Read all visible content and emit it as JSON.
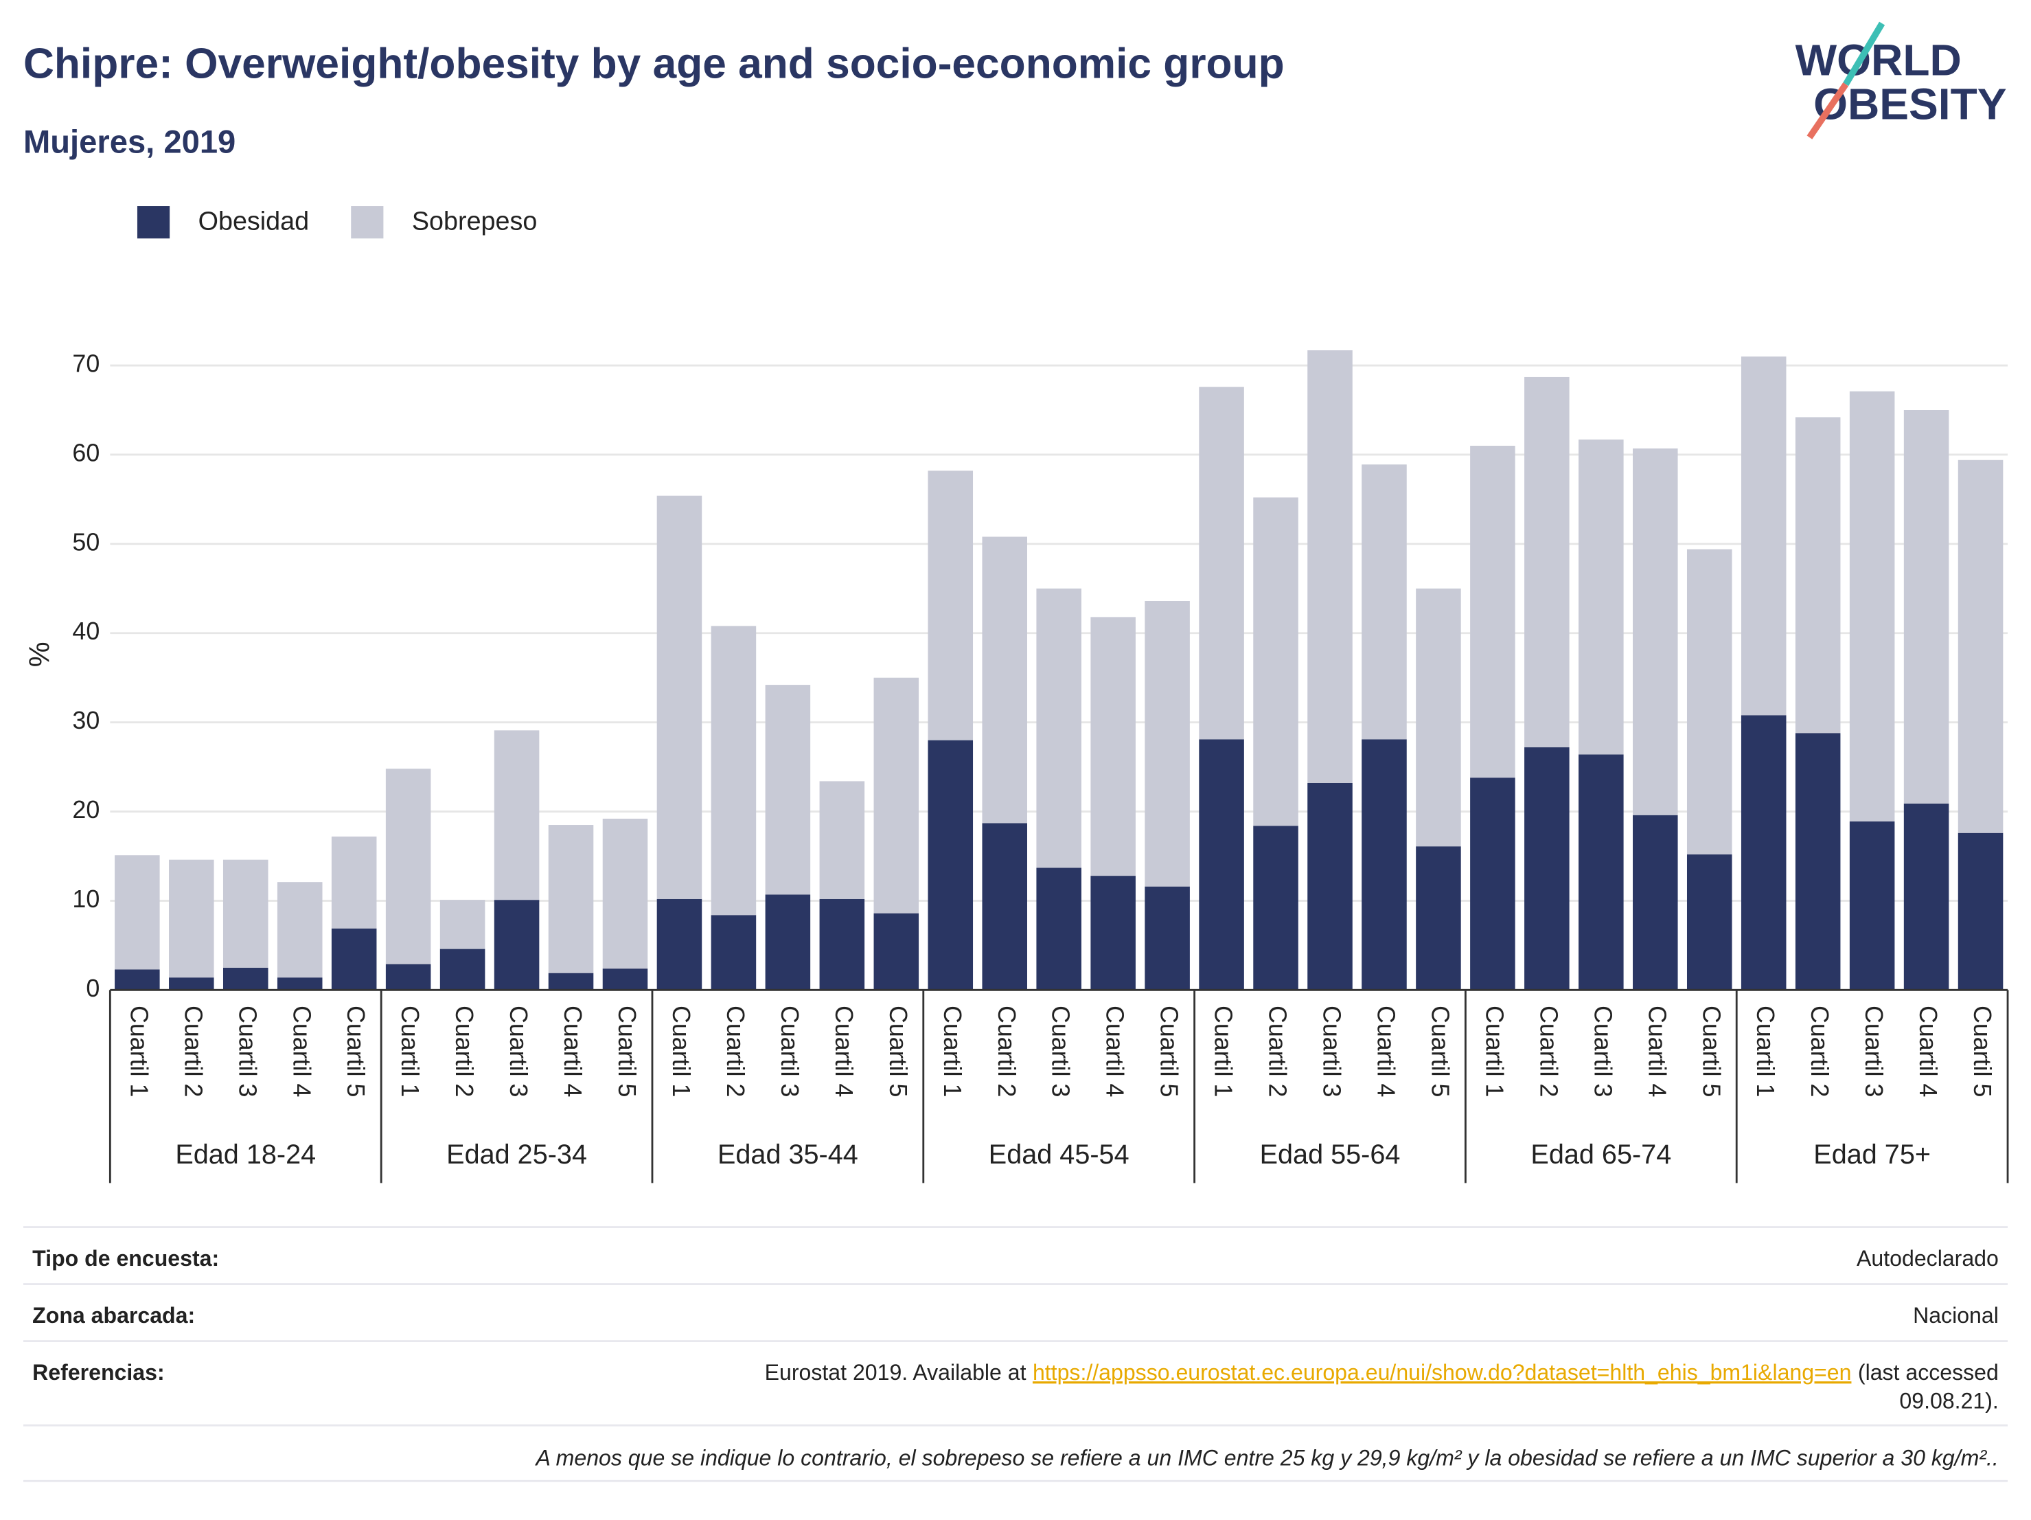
{
  "chart_data": {
    "type": "stacked_bar",
    "title": "Chipre: Overweight/obesity by age and socio-economic group",
    "subtitle": "Mujeres, 2019",
    "y_label": "%",
    "logo": [
      "WORLD",
      "OBESITY"
    ],
    "groups": [
      "Edad 18-24",
      "Edad 25-34",
      "Edad 35-44",
      "Edad 45-54",
      "Edad 55-64",
      "Edad 65-74",
      "Edad 75+"
    ],
    "categories": [
      "Cuartil 1",
      "Cuartil 2",
      "Cuartil 3",
      "Cuartil 4",
      "Cuartil 5",
      "Cuartil 1",
      "Cuartil 2",
      "Cuartil 3",
      "Cuartil 4",
      "Cuartil 5",
      "Cuartil 1",
      "Cuartil 2",
      "Cuartil 3",
      "Cuartil 4",
      "Cuartil 5",
      "Cuartil 1",
      "Cuartil 2",
      "Cuartil 3",
      "Cuartil 4",
      "Cuartil 5",
      "Cuartil 1",
      "Cuartil 2",
      "Cuartil 3",
      "Cuartil 4",
      "Cuartil 5",
      "Cuartil 1",
      "Cuartil 2",
      "Cuartil 3",
      "Cuartil 4",
      "Cuartil 5",
      "Cuartil 1",
      "Cuartil 2",
      "Cuartil 3",
      "Cuartil 4",
      "Cuartil 5"
    ],
    "series": [
      {
        "name": "Obesidad",
        "color": "#2a3663",
        "values": [
          2.3,
          1.4,
          2.5,
          1.4,
          6.9,
          2.9,
          4.6,
          10.1,
          1.9,
          2.4,
          10.2,
          8.4,
          10.7,
          10.2,
          8.6,
          28.0,
          18.7,
          13.7,
          12.8,
          11.6,
          28.1,
          18.4,
          23.2,
          28.1,
          16.1,
          23.8,
          27.2,
          26.4,
          19.6,
          15.2,
          30.8,
          28.8,
          18.9,
          20.9,
          17.6
        ]
      },
      {
        "name": "Sobrepeso",
        "color": "#c8cad6",
        "values": [
          12.8,
          13.2,
          12.1,
          10.7,
          10.3,
          21.9,
          5.5,
          19.0,
          16.6,
          16.8,
          45.2,
          32.4,
          23.5,
          13.2,
          26.4,
          30.2,
          32.1,
          31.3,
          29.0,
          32.0,
          39.5,
          36.8,
          48.5,
          30.8,
          28.9,
          37.2,
          41.5,
          35.3,
          41.1,
          34.2,
          40.2,
          35.4,
          48.2,
          44.1,
          41.8
        ]
      }
    ],
    "ylim": [
      0,
      70
    ],
    "yticks": [
      0,
      10,
      20,
      30,
      40,
      50,
      60,
      70
    ],
    "grid": true
  },
  "footer": {
    "rows": [
      [
        "Tipo de encuesta:",
        "Autodeclarado"
      ],
      [
        "Zona abarcada:",
        "Nacional"
      ]
    ],
    "references_label": "Referencias:",
    "references": [
      "Eurostat 2019. Available at",
      "https://appsso.eurostat.ec.europa.eu/nui/show.do?dataset=hlth_ehis_bm1i&lang=en",
      "(last accessed",
      "09.08.21)."
    ],
    "note": "A menos que se indique lo contrario, el sobrepeso se refiere a un IMC entre 25 kg y 29,9 kg/m² y la obesidad se refiere a un IMC superior a 30 kg/m².."
  }
}
